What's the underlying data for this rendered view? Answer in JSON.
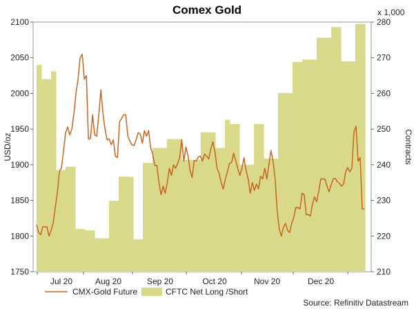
{
  "chart_data": {
    "type": "line",
    "title": "Comex Gold",
    "x_tick_labels": [
      "Jul 20",
      "Aug 20",
      "Sep 20",
      "Oct 20",
      "Nov 20",
      "Dec 20"
    ],
    "y_left": {
      "label": "USD/oz",
      "range": [
        1750,
        2100
      ],
      "ticks": [
        1750,
        1800,
        1850,
        1900,
        1950,
        2000,
        2050,
        2100
      ]
    },
    "y_right": {
      "label": "Contracts",
      "multiplier_label": "x 1,000",
      "range": [
        210,
        280
      ],
      "ticks": [
        210,
        220,
        230,
        240,
        250,
        260,
        270,
        280
      ]
    },
    "grid": false,
    "legend_position": "bottom",
    "colors": {
      "gold_line": "#c8641e",
      "cftc_area": "#d9d98a",
      "cftc_area_edge": "#c9c96a",
      "plot_bg": "#ffffff",
      "outer_bg": "#f2f2f2"
    },
    "series": [
      {
        "name": "CMX-Gold Future",
        "kind": "line",
        "axis": "left",
        "values": [
          1816,
          1805,
          1802,
          1813,
          1813,
          1813,
          1800,
          1808,
          1818,
          1840,
          1860,
          1890,
          1896,
          1920,
          1945,
          1953,
          1942,
          1950,
          1972,
          2000,
          2020,
          2050,
          2055,
          2020,
          2025,
          1936,
          1937,
          1970,
          1942,
          1940,
          1970,
          2005,
          1972,
          1950,
          1935,
          1936,
          1928,
          1935,
          1912,
          1910,
          1960,
          1965,
          1970,
          1970,
          1940,
          1933,
          1928,
          1927,
          1935,
          1945,
          1943,
          1930,
          1948,
          1940,
          1948,
          1924,
          1915,
          1899,
          1899,
          1875,
          1858,
          1870,
          1860,
          1875,
          1895,
          1885,
          1900,
          1895,
          1902,
          1910,
          1935,
          1905,
          1925,
          1913,
          1892,
          1882,
          1906,
          1905,
          1911,
          1912,
          1905,
          1915,
          1912,
          1908,
          1922,
          1932,
          1918,
          1895,
          1888,
          1875,
          1866,
          1880,
          1890,
          1902,
          1903,
          1916,
          1906,
          1895,
          1885,
          1895,
          1910,
          1892,
          1880,
          1860,
          1875,
          1864,
          1873,
          1866,
          1884,
          1880,
          1895,
          1880,
          1900,
          1920,
          1905,
          1880,
          1835,
          1810,
          1800,
          1812,
          1818,
          1808,
          1805,
          1818,
          1826,
          1840,
          1840,
          1838,
          1860,
          1858,
          1830,
          1830,
          1828,
          1845,
          1855,
          1848,
          1862,
          1880,
          1880,
          1880,
          1870,
          1862,
          1872,
          1880,
          1881,
          1876,
          1874,
          1870,
          1873,
          1890,
          1896,
          1890,
          1895,
          1946,
          1954,
          1905,
          1910,
          1838,
          1838
        ]
      },
      {
        "name": "CFTC Net Long /Short",
        "kind": "step-area",
        "axis": "right",
        "steps": [
          [
            268.0,
            268.0,
            264.0,
            264.0,
            264.0,
            264.0,
            266.2,
            266.2
          ],
          [
            238.5,
            238.5,
            238.5,
            238.5,
            239.4,
            239.4,
            239.4,
            239.4
          ],
          [
            222.0,
            222.0,
            222.0,
            222.0,
            221.6,
            221.6,
            221.6,
            221.6
          ],
          [
            219.4,
            219.4,
            219.4,
            219.4,
            219.4,
            219.4,
            229.9,
            229.9
          ],
          [
            229.9,
            229.9,
            236.7,
            236.7,
            236.7,
            236.7,
            236.6,
            236.6
          ],
          [
            219.1,
            219.1,
            219.1,
            219.1,
            240.5,
            240.5,
            240.5,
            240.5
          ],
          [
            244.7,
            244.7,
            244.7,
            244.7,
            244.7,
            244.7,
            247.2,
            247.2
          ],
          [
            247.2,
            247.2,
            247.2,
            247.2,
            241.4,
            241.4,
            241.4,
            241.4
          ],
          [
            241.4,
            241.4,
            241.4,
            241.4,
            249.1,
            249.1,
            249.1,
            249.1
          ],
          [
            249.1,
            249.1,
            244.7,
            244.7,
            244.7,
            244.7,
            252.6,
            252.6
          ],
          [
            251.4,
            251.4,
            251.4,
            251.4,
            240.0,
            240.0,
            240.0,
            240.0
          ],
          [
            240.0,
            240.0,
            251.4,
            251.4,
            251.4,
            251.4,
            241.7,
            241.7
          ],
          [
            241.7,
            241.7,
            241.7,
            241.7,
            260.1,
            260.1,
            260.1,
            260.1
          ],
          [
            260.1,
            260.1,
            268.8,
            268.8,
            268.8,
            268.8,
            269.5,
            269.5
          ],
          [
            269.5,
            269.5,
            269.5,
            269.5,
            275.6,
            275.6,
            275.6,
            275.6
          ],
          [
            275.6,
            275.6,
            278.6,
            278.6,
            278.6,
            278.6,
            269.0,
            269.0
          ],
          [
            269.0,
            269.0,
            269.0,
            269.0,
            279.5,
            279.5,
            279.5,
            279.5
          ]
        ]
      }
    ]
  },
  "legend": {
    "line_label": "CMX-Gold Future",
    "area_label": "CFTC Net Long /Short"
  },
  "source": "Source: Refinitiv Datastream"
}
